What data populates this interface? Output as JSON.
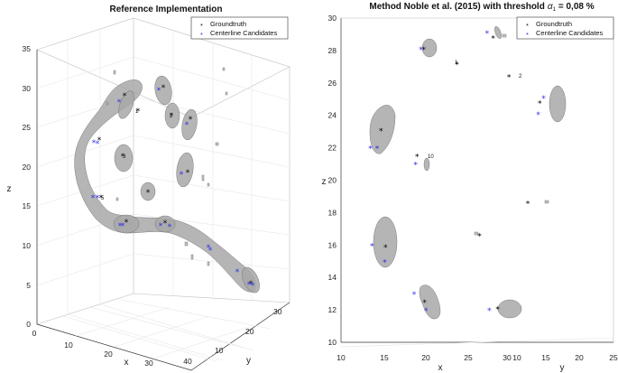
{
  "chart_data": [
    {
      "type": "scatter3d",
      "title": "Reference Implementation",
      "xlabel": "x",
      "ylabel": "y",
      "zlabel": "z",
      "x_ticks": [
        "0",
        "10",
        "20",
        "30",
        "40"
      ],
      "y_ticks": [
        "10",
        "20",
        "30"
      ],
      "z_ticks": [
        "0",
        "5",
        "10",
        "15",
        "20",
        "25",
        "30",
        "35"
      ],
      "xlim": [
        0,
        40
      ],
      "ylim": [
        0,
        35
      ],
      "zlim": [
        0,
        35
      ],
      "legend": [
        "Groundtruth",
        "Centerline Candidates"
      ],
      "legend_position": "top-right",
      "point_labels": [
        "1",
        "2",
        "3",
        "4",
        "5",
        "6",
        "7",
        "8",
        "9",
        "10",
        "11",
        "12",
        "13"
      ],
      "series": [
        {
          "name": "Groundtruth",
          "marker": "*",
          "color": "#000000"
        },
        {
          "name": "Centerline Candidates",
          "marker": "*",
          "color": "#2b2bf0"
        }
      ]
    },
    {
      "type": "scatter",
      "title": "Method Noble et al. (2015) with threshold",
      "title_symbol": "α",
      "title_subscript": "1",
      "title_value": "= 0,08 %",
      "xlabel": "x",
      "ylabel": "y",
      "zlabel": "z",
      "x_ticks": [
        "10",
        "15",
        "20",
        "25",
        "30"
      ],
      "y_ticks": [
        "10",
        "15",
        "20",
        "25"
      ],
      "z_ticks": [
        "10",
        "12",
        "14",
        "16",
        "18",
        "20",
        "22",
        "24",
        "26",
        "28",
        "30"
      ],
      "zlim": [
        10,
        30
      ],
      "legend": [
        "Groundtruth",
        "Centerline Candidates"
      ],
      "legend_position": "top-right",
      "point_labels": [
        "10",
        "1",
        "2"
      ],
      "groundtruth": [
        {
          "x": 21.0,
          "z": 28.1
        },
        {
          "x": 30.2,
          "z": 28.8
        },
        {
          "x": 25.4,
          "z": 27.2
        },
        {
          "x": 32.3,
          "z": 26.4
        },
        {
          "x": 36.4,
          "z": 24.8
        },
        {
          "x": 15.3,
          "z": 23.1
        },
        {
          "x": 20.1,
          "z": 21.5
        },
        {
          "x": 34.8,
          "z": 18.6
        },
        {
          "x": 28.4,
          "z": 16.6
        },
        {
          "x": 15.9,
          "z": 15.9
        },
        {
          "x": 21.1,
          "z": 12.5
        },
        {
          "x": 30.8,
          "z": 12.1
        }
      ],
      "candidates": [
        {
          "x": 20.6,
          "z": 28.1
        },
        {
          "x": 29.4,
          "z": 29.1
        },
        {
          "x": 36.9,
          "z": 25.1
        },
        {
          "x": 36.2,
          "z": 24.1
        },
        {
          "x": 13.9,
          "z": 22.0
        },
        {
          "x": 14.8,
          "z": 22.0
        },
        {
          "x": 19.9,
          "z": 21.0
        },
        {
          "x": 14.1,
          "z": 16.0
        },
        {
          "x": 15.8,
          "z": 15.0
        },
        {
          "x": 19.7,
          "z": 13.0
        },
        {
          "x": 21.3,
          "z": 12.0
        },
        {
          "x": 29.7,
          "z": 12.0
        }
      ]
    }
  ]
}
